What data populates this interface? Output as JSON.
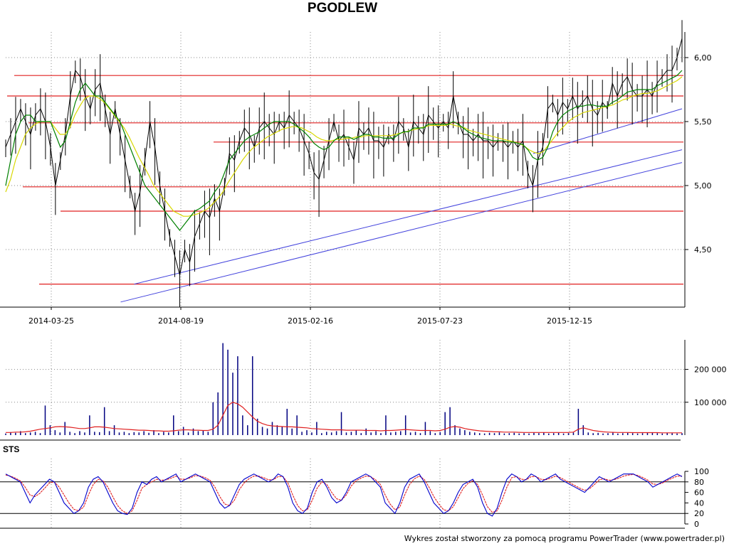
{
  "title": "PGODLEW",
  "footer": "Wykres został stworzony za pomocą programu PowerTrader (www.powertrader.pl)",
  "colors": {
    "price": "#000000",
    "ma_short": "#008000",
    "ma_long": "#d8d800",
    "support_line": "#e02020",
    "trend_line": "#4444dd",
    "volume_bar": "#000080",
    "volume_avg": "#e02020",
    "sts_k": "#0000cc",
    "sts_d": "#e02020"
  },
  "chart_data": [
    {
      "type": "line",
      "panel": "price",
      "title": "PGODLEW",
      "x_tick_labels": [
        "2014-03-25",
        "2014-08-19",
        "2015-02-16",
        "2015-07-23",
        "2015-12-15"
      ],
      "y_tick_labels": [
        "4,50",
        "5,00",
        "5,50",
        "6,00"
      ],
      "y_ticks": [
        4.5,
        5.0,
        5.5,
        6.0
      ],
      "ylim": [
        4.05,
        6.2
      ],
      "grid": true,
      "series": [
        {
          "values": [
            5.3,
            5.4,
            5.5,
            5.6,
            5.5,
            5.4,
            5.55,
            5.6,
            5.5,
            5.3,
            5.0,
            5.2,
            5.4,
            5.7,
            5.9,
            5.85,
            5.7,
            5.6,
            5.75,
            5.8,
            5.6,
            5.4,
            5.6,
            5.4,
            5.2,
            5.0,
            4.8,
            4.95,
            5.2,
            5.5,
            5.3,
            5.0,
            4.8,
            4.6,
            4.45,
            4.3,
            4.5,
            4.4,
            4.6,
            4.7,
            4.8,
            4.75,
            4.9,
            4.8,
            5.0,
            5.25,
            5.2,
            5.35,
            5.45,
            5.4,
            5.3,
            5.45,
            5.5,
            5.45,
            5.4,
            5.5,
            5.45,
            5.55,
            5.5,
            5.45,
            5.35,
            5.25,
            5.1,
            5.05,
            5.2,
            5.35,
            5.5,
            5.35,
            5.4,
            5.3,
            5.2,
            5.45,
            5.4,
            5.45,
            5.35,
            5.35,
            5.3,
            5.4,
            5.35,
            5.5,
            5.45,
            5.3,
            5.5,
            5.45,
            5.4,
            5.55,
            5.5,
            5.45,
            5.5,
            5.45,
            5.7,
            5.5,
            5.4,
            5.4,
            5.35,
            5.4,
            5.35,
            5.35,
            5.3,
            5.35,
            5.35,
            5.3,
            5.35,
            5.3,
            5.35,
            5.1,
            5.0,
            5.2,
            5.3,
            5.6,
            5.65,
            5.55,
            5.65,
            5.6,
            5.7,
            5.6,
            5.65,
            5.7,
            5.6,
            5.55,
            5.65,
            5.6,
            5.8,
            5.7,
            5.8,
            5.85,
            5.75,
            5.7,
            5.7,
            5.75,
            5.7,
            5.8,
            5.85,
            5.9,
            5.9,
            6.0,
            6.15
          ]
        },
        {
          "values": [
            5.0,
            5.2,
            5.4,
            5.5,
            5.55,
            5.55,
            5.5,
            5.5,
            5.5,
            5.5,
            5.4,
            5.3,
            5.35,
            5.5,
            5.65,
            5.75,
            5.8,
            5.75,
            5.7,
            5.7,
            5.65,
            5.6,
            5.55,
            5.5,
            5.4,
            5.3,
            5.2,
            5.1,
            5.0,
            4.95,
            4.9,
            4.85,
            4.8,
            4.75,
            4.7,
            4.65,
            4.7,
            4.75,
            4.8,
            4.82,
            4.85,
            4.88,
            4.95,
            5.0,
            5.1,
            5.2,
            5.25,
            5.3,
            5.35,
            5.38,
            5.4,
            5.42,
            5.45,
            5.48,
            5.5,
            5.5,
            5.5,
            5.5,
            5.48,
            5.45,
            5.42,
            5.38,
            5.33,
            5.3,
            5.28,
            5.3,
            5.35,
            5.38,
            5.38,
            5.38,
            5.36,
            5.38,
            5.4,
            5.4,
            5.38,
            5.38,
            5.37,
            5.37,
            5.37,
            5.4,
            5.42,
            5.42,
            5.45,
            5.45,
            5.45,
            5.48,
            5.48,
            5.48,
            5.48,
            5.48,
            5.5,
            5.48,
            5.45,
            5.42,
            5.4,
            5.38,
            5.37,
            5.36,
            5.35,
            5.35,
            5.35,
            5.34,
            5.34,
            5.33,
            5.32,
            5.28,
            5.22,
            5.2,
            5.22,
            5.3,
            5.42,
            5.5,
            5.55,
            5.58,
            5.6,
            5.62,
            5.62,
            5.63,
            5.63,
            5.62,
            5.62,
            5.62,
            5.65,
            5.67,
            5.7,
            5.73,
            5.74,
            5.75,
            5.75,
            5.75,
            5.75,
            5.78,
            5.8,
            5.82,
            5.84,
            5.86,
            5.9
          ]
        },
        {
          "values": [
            4.95,
            5.05,
            5.2,
            5.3,
            5.4,
            5.45,
            5.48,
            5.5,
            5.5,
            5.5,
            5.45,
            5.4,
            5.4,
            5.45,
            5.55,
            5.62,
            5.68,
            5.7,
            5.7,
            5.68,
            5.65,
            5.6,
            5.55,
            5.5,
            5.45,
            5.38,
            5.3,
            5.22,
            5.15,
            5.08,
            5.0,
            4.95,
            4.9,
            4.85,
            4.8,
            4.78,
            4.76,
            4.76,
            4.77,
            4.78,
            4.8,
            4.82,
            4.86,
            4.9,
            4.95,
            5.02,
            5.08,
            5.14,
            5.2,
            5.25,
            5.29,
            5.32,
            5.35,
            5.38,
            5.4,
            5.42,
            5.44,
            5.45,
            5.46,
            5.46,
            5.45,
            5.43,
            5.41,
            5.38,
            5.36,
            5.35,
            5.35,
            5.36,
            5.36,
            5.37,
            5.37,
            5.38,
            5.38,
            5.39,
            5.39,
            5.39,
            5.39,
            5.39,
            5.39,
            5.4,
            5.41,
            5.42,
            5.43,
            5.44,
            5.45,
            5.46,
            5.47,
            5.47,
            5.47,
            5.47,
            5.48,
            5.47,
            5.46,
            5.45,
            5.43,
            5.42,
            5.41,
            5.4,
            5.39,
            5.38,
            5.37,
            5.36,
            5.35,
            5.34,
            5.33,
            5.31,
            5.28,
            5.26,
            5.25,
            5.27,
            5.32,
            5.37,
            5.42,
            5.46,
            5.5,
            5.53,
            5.55,
            5.57,
            5.58,
            5.59,
            5.6,
            5.61,
            5.62,
            5.63,
            5.65,
            5.67,
            5.68,
            5.7,
            5.71,
            5.72,
            5.72,
            5.73,
            5.74,
            5.76,
            5.78,
            5.8,
            5.82,
            5.85
          ]
        }
      ],
      "horizontal_levels": [
        4.23,
        4.8,
        4.99,
        5.34,
        5.49,
        5.7,
        5.86
      ],
      "trend_lines": [
        {
          "from": [
            0.17,
            4.09
          ],
          "to": [
            1.0,
            5.18
          ]
        },
        {
          "from": [
            0.19,
            4.23
          ],
          "to": [
            1.0,
            5.28
          ]
        },
        {
          "from": [
            0.78,
            5.25
          ],
          "to": [
            1.0,
            5.6
          ]
        }
      ]
    },
    {
      "type": "bar",
      "panel": "volume",
      "y_tick_labels": [
        "100 000",
        "200 000"
      ],
      "y_ticks": [
        100000,
        200000
      ],
      "ylim": [
        0,
        290000
      ],
      "grid": true,
      "series": [
        {
          "values": [
            5000,
            9000,
            7000,
            12000,
            6000,
            8000,
            10000,
            6000,
            90000,
            30000,
            15000,
            8000,
            40000,
            10000,
            6000,
            12000,
            8000,
            60000,
            10000,
            9000,
            85000,
            12000,
            30000,
            8000,
            10000,
            6000,
            9000,
            8000,
            12000,
            7000,
            15000,
            6000,
            10000,
            8000,
            60000,
            12000,
            25000,
            8000,
            20000,
            12000,
            15000,
            10000,
            100000,
            130000,
            280000,
            260000,
            190000,
            240000,
            60000,
            30000,
            240000,
            50000,
            25000,
            20000,
            40000,
            30000,
            25000,
            80000,
            20000,
            60000,
            10000,
            15000,
            8000,
            40000,
            6000,
            10000,
            8000,
            12000,
            70000,
            8000,
            10000,
            15000,
            6000,
            20000,
            8000,
            12000,
            6000,
            60000,
            8000,
            10000,
            12000,
            60000,
            8000,
            10000,
            6000,
            40000,
            12000,
            6000,
            9000,
            70000,
            85000,
            30000,
            20000,
            15000,
            10000,
            8000,
            6000,
            5000,
            7000,
            6000,
            8000,
            5000,
            6000,
            7000,
            5000,
            6000,
            5000,
            7000,
            6000,
            8000,
            5000,
            6000,
            7000,
            5000,
            6000,
            8000,
            80000,
            30000,
            8000,
            6000,
            7000,
            5000,
            6000,
            8000,
            5000,
            6000,
            7000,
            6000,
            5000,
            6000,
            7000,
            8000,
            6000,
            5000,
            7000,
            6000,
            5000,
            6000
          ]
        },
        {
          "values": [
            8000,
            8000,
            9000,
            9000,
            10000,
            12000,
            15000,
            18000,
            20000,
            22000,
            25000,
            26000,
            25000,
            24000,
            22000,
            20000,
            20000,
            22000,
            25000,
            25000,
            24000,
            22000,
            20000,
            19000,
            18000,
            17000,
            16000,
            15000,
            15000,
            14000,
            13000,
            13000,
            12000,
            12000,
            13000,
            15000,
            16000,
            16000,
            15000,
            15000,
            14000,
            14000,
            18000,
            30000,
            60000,
            90000,
            100000,
            95000,
            85000,
            70000,
            55000,
            42000,
            35000,
            30000,
            28000,
            27000,
            26000,
            25000,
            25000,
            24000,
            23000,
            22000,
            20000,
            19000,
            18000,
            17000,
            16000,
            16000,
            16000,
            15000,
            15000,
            15000,
            15000,
            14000,
            14000,
            14000,
            13000,
            14000,
            14000,
            15000,
            16000,
            17000,
            16000,
            15000,
            14000,
            14000,
            14000,
            13000,
            14000,
            18000,
            24000,
            26000,
            24000,
            20000,
            17000,
            15000,
            13000,
            12000,
            11000,
            10000,
            10000,
            9000,
            9000,
            9000,
            8500,
            8000,
            8000,
            8000,
            8000,
            8000,
            8000,
            8000,
            8000,
            8000,
            8000,
            9000,
            18000,
            22000,
            18000,
            14000,
            12000,
            10000,
            9000,
            8500,
            8000,
            8000,
            8000,
            7500,
            7500,
            7500,
            7500,
            7500,
            7500,
            7000,
            7000,
            7000,
            7000,
            7000
          ]
        }
      ]
    },
    {
      "type": "line",
      "panel": "oscillator",
      "title": "STS",
      "y_tick_labels": [
        "0",
        "20",
        "40",
        "60",
        "80",
        "100"
      ],
      "y_ticks": [
        0,
        20,
        40,
        60,
        80,
        100
      ],
      "ylim": [
        0,
        100
      ],
      "reference_levels": [
        20,
        80
      ],
      "series": [
        {
          "values": [
            95,
            90,
            85,
            80,
            60,
            40,
            55,
            65,
            75,
            85,
            80,
            60,
            40,
            30,
            20,
            25,
            40,
            70,
            85,
            90,
            80,
            60,
            40,
            25,
            20,
            18,
            30,
            60,
            80,
            75,
            85,
            90,
            80,
            85,
            90,
            95,
            80,
            85,
            90,
            95,
            90,
            85,
            80,
            60,
            40,
            30,
            35,
            55,
            75,
            85,
            90,
            95,
            90,
            85,
            80,
            85,
            95,
            90,
            70,
            40,
            25,
            20,
            30,
            60,
            80,
            85,
            70,
            50,
            40,
            45,
            60,
            80,
            85,
            90,
            95,
            90,
            80,
            70,
            40,
            30,
            20,
            40,
            70,
            85,
            90,
            95,
            80,
            60,
            40,
            30,
            20,
            25,
            40,
            60,
            75,
            80,
            85,
            70,
            40,
            20,
            15,
            30,
            60,
            85,
            95,
            90,
            80,
            85,
            95,
            90,
            80,
            85,
            90,
            95,
            85,
            80,
            75,
            70,
            65,
            60,
            70,
            80,
            90,
            85,
            80,
            85,
            90,
            95,
            95,
            95,
            90,
            85,
            80,
            70,
            75,
            80,
            85,
            90,
            95,
            90
          ]
        },
        {
          "values": [
            93,
            91,
            87,
            82,
            70,
            55,
            52,
            58,
            68,
            78,
            80,
            70,
            55,
            40,
            28,
            25,
            32,
            55,
            75,
            85,
            82,
            70,
            52,
            35,
            25,
            20,
            25,
            45,
            68,
            75,
            80,
            85,
            83,
            84,
            87,
            91,
            85,
            85,
            88,
            92,
            91,
            88,
            83,
            70,
            52,
            38,
            35,
            45,
            65,
            78,
            86,
            91,
            91,
            88,
            84,
            84,
            90,
            90,
            78,
            55,
            35,
            25,
            27,
            45,
            68,
            80,
            75,
            60,
            48,
            45,
            55,
            72,
            82,
            87,
            91,
            90,
            84,
            75,
            55,
            38,
            27,
            32,
            55,
            75,
            86,
            91,
            85,
            70,
            52,
            38,
            27,
            25,
            33,
            50,
            67,
            77,
            82,
            75,
            55,
            33,
            22,
            25,
            45,
            70,
            88,
            90,
            85,
            84,
            90,
            90,
            85,
            84,
            87,
            91,
            88,
            83,
            78,
            73,
            68,
            64,
            67,
            75,
            84,
            86,
            83,
            84,
            87,
            91,
            93,
            94,
            92,
            88,
            83,
            76,
            75,
            78,
            83,
            87,
            91,
            91
          ]
        }
      ]
    }
  ]
}
